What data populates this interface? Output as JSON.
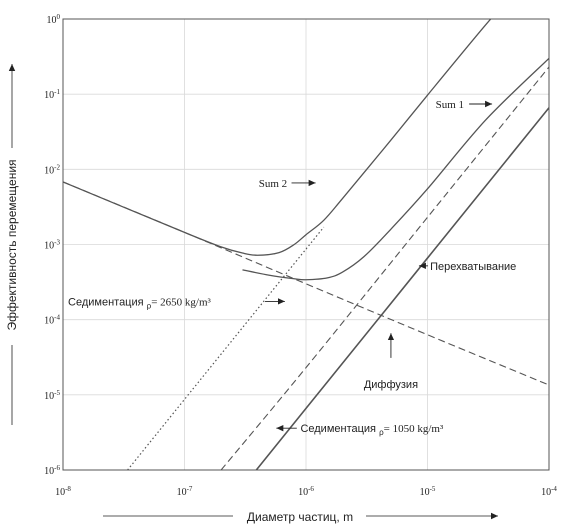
{
  "chart_data": {
    "type": "line",
    "xscale": "log",
    "yscale": "log",
    "xlim": [
      1e-08,
      0.0001
    ],
    "ylim": [
      1e-06,
      1
    ],
    "grid": true,
    "xlabel": "Диаметр частиц, m",
    "ylabel": "Эффективность перемещения",
    "xticks": [
      {
        "value": 1e-08,
        "base": "10",
        "exp": "-8"
      },
      {
        "value": 1e-07,
        "base": "10",
        "exp": "-7"
      },
      {
        "value": 1e-06,
        "base": "10",
        "exp": "-6"
      },
      {
        "value": 1e-05,
        "base": "10",
        "exp": "-5"
      },
      {
        "value": 0.0001,
        "base": "10",
        "exp": "-4"
      }
    ],
    "yticks": [
      {
        "value": 1,
        "base": "10",
        "exp": "0"
      },
      {
        "value": 0.1,
        "base": "10",
        "exp": "-1"
      },
      {
        "value": 0.01,
        "base": "10",
        "exp": "-2"
      },
      {
        "value": 0.001,
        "base": "10",
        "exp": "-3"
      },
      {
        "value": 0.0001,
        "base": "10",
        "exp": "-4"
      },
      {
        "value": 1e-05,
        "base": "10",
        "exp": "-5"
      },
      {
        "value": 1e-06,
        "base": "10",
        "exp": "-6"
      }
    ],
    "series": [
      {
        "key": "sum2",
        "style": "solid",
        "width": 1.3,
        "x": [
          1e-08,
          1e-07,
          2e-07,
          3e-07,
          4e-07,
          6e-07,
          8e-07,
          1e-06,
          1.4e-06,
          2e-06,
          5e-06,
          1e-05,
          3e-05,
          5.5e-05
        ],
        "y": [
          0.0068,
          0.00145,
          0.00093,
          0.00077,
          0.00072,
          0.00078,
          0.001,
          0.00135,
          0.0021,
          0.0041,
          0.0245,
          0.097,
          0.83,
          2.5
        ]
      },
      {
        "key": "sum1",
        "style": "solid",
        "width": 1.3,
        "x": [
          3e-07,
          5e-07,
          8e-07,
          1e-06,
          1.5e-06,
          2e-06,
          3e-06,
          5e-06,
          1e-05,
          3e-05,
          0.0001
        ],
        "y": [
          0.00046,
          0.00039,
          0.00035,
          0.00034,
          0.00036,
          0.00043,
          0.00069,
          0.0016,
          0.0055,
          0.045,
          0.3
        ]
      },
      {
        "key": "interception",
        "style": "solid",
        "width": 1.6,
        "x": [
          3.9e-07,
          1e-06,
          1e-05,
          0.0001
        ],
        "y": [
          1e-06,
          6.6e-06,
          0.00066,
          0.066
        ]
      },
      {
        "key": "diffusion",
        "style": "dashed",
        "width": 1.1,
        "x": [
          1e-08,
          1e-07,
          1e-06,
          1e-05,
          0.0001
        ],
        "y": [
          0.0068,
          0.00145,
          0.0003,
          6.3e-05,
          1.35e-05
        ]
      },
      {
        "key": "sed1050",
        "style": "dashed",
        "width": 1.1,
        "x": [
          2e-07,
          1e-06,
          1e-05,
          0.0001
        ],
        "y": [
          1e-06,
          2.3e-05,
          0.0023,
          0.23
        ]
      },
      {
        "key": "sed2650",
        "style": "dotted",
        "width": 1.2,
        "x": [
          3.4e-08,
          1e-07,
          1e-06,
          1.4e-06
        ],
        "y": [
          1e-06,
          8.7e-06,
          0.00087,
          0.0017
        ]
      }
    ],
    "annotations": [
      {
        "key": "sum1",
        "text": "Sum 1",
        "sub": "",
        "tail": "",
        "font": "serif",
        "x": 2e-05,
        "y": 0.074,
        "anchor": "end",
        "arrow": [
          [
            2.2e-05,
            0.074
          ],
          [
            3.4e-05,
            0.074
          ]
        ]
      },
      {
        "key": "sum2",
        "text": "Sum 2",
        "sub": "",
        "tail": "",
        "font": "serif",
        "x": 7e-07,
        "y": 0.0066,
        "anchor": "end",
        "arrow": [
          [
            7.6e-07,
            0.0066
          ],
          [
            1.2e-06,
            0.0066
          ]
        ]
      },
      {
        "key": "interception",
        "text": "Перехватывание",
        "sub": "",
        "tail": "",
        "font": "sans",
        "x": 1.05e-05,
        "y": 0.00052,
        "anchor": "start",
        "arrow": [
          [
            1.01e-05,
            0.00052
          ],
          [
            8.5e-06,
            0.00052
          ]
        ]
      },
      {
        "key": "diffusion",
        "text": "Диффузия",
        "sub": "",
        "tail": "",
        "font": "sans",
        "x": 5e-06,
        "y": 1.4e-05,
        "anchor": "middle",
        "arrow": [
          [
            5e-06,
            3.1e-05
          ],
          [
            5e-06,
            6.6e-05
          ]
        ]
      },
      {
        "key": "sed2650",
        "text": "Седиментация ρ",
        "sub": "ρ",
        "tail": "= 2650 kg/m³",
        "font": "sans",
        "x": 1.1e-08,
        "y": 0.000175,
        "anchor": "start",
        "arrow": [
          [
            4.6e-07,
            0.000175
          ],
          [
            6.7e-07,
            0.000175
          ]
        ]
      },
      {
        "key": "sed1050",
        "text": "Седиментация ρ",
        "sub": "ρ",
        "tail": "= 1050 kg/m³",
        "font": "sans",
        "x": 9e-07,
        "y": 3.6e-06,
        "anchor": "start",
        "arrow": [
          [
            8.4e-07,
            3.6e-06
          ],
          [
            5.7e-07,
            3.6e-06
          ]
        ]
      }
    ]
  }
}
